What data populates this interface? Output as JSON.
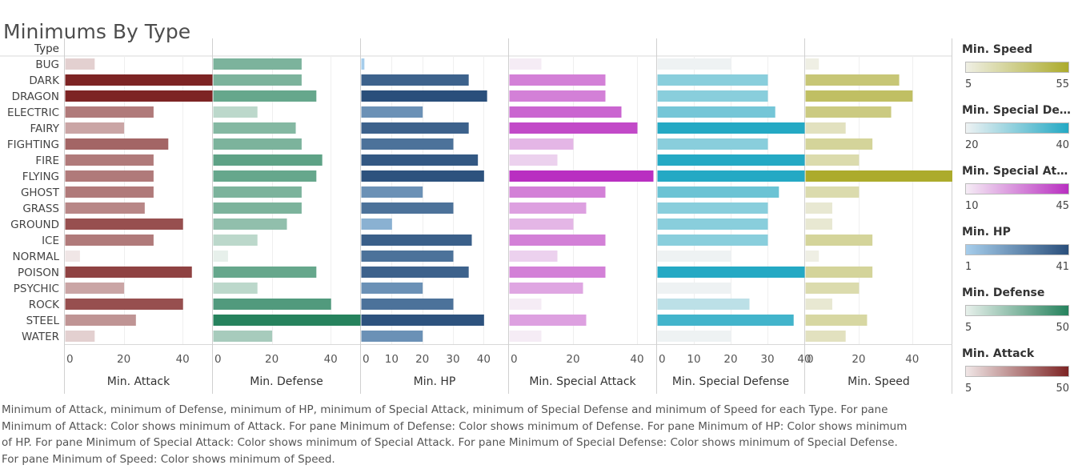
{
  "title": "Minimums By Type",
  "row_header": "Type",
  "chart_data": {
    "type": "bar",
    "orientation": "horizontal",
    "categories": [
      "BUG",
      "DARK",
      "DRAGON",
      "ELECTRIC",
      "FAIRY",
      "FIGHTING",
      "FIRE",
      "FLYING",
      "GHOST",
      "GRASS",
      "GROUND",
      "ICE",
      "NORMAL",
      "POISON",
      "PSYCHIC",
      "ROCK",
      "STEEL",
      "WATER"
    ],
    "panes": [
      {
        "xlabel": "Min. Attack",
        "ticks": [
          0,
          20,
          40
        ],
        "xlim": [
          0,
          50
        ],
        "color_low": "#f0e6e6",
        "color_high": "#7d2424",
        "legend": {
          "title": "Min. Attack",
          "min": "5",
          "max": "50"
        },
        "values": [
          10,
          50,
          50,
          30,
          20,
          35,
          30,
          30,
          30,
          27,
          40,
          30,
          5,
          43,
          20,
          40,
          24,
          10
        ]
      },
      {
        "xlabel": "Min. Defense",
        "ticks": [
          0,
          20,
          40
        ],
        "xlim": [
          0,
          50
        ],
        "color_low": "#e7f0eb",
        "color_high": "#26825d",
        "legend": {
          "title": "Min. Defense",
          "min": "5",
          "max": "50"
        },
        "values": [
          30,
          30,
          35,
          15,
          28,
          30,
          37,
          35,
          30,
          30,
          25,
          15,
          5,
          35,
          15,
          40,
          50,
          20
        ]
      },
      {
        "xlabel": "Min. HP",
        "ticks": [
          0,
          10,
          20,
          30,
          40
        ],
        "xlim": [
          0,
          48
        ],
        "color_low": "#a6cdeb",
        "color_high": "#2a4f7b",
        "legend": {
          "title": "Min. HP",
          "min": "1",
          "max": "41"
        },
        "values": [
          1,
          35,
          41,
          20,
          35,
          30,
          38,
          40,
          20,
          30,
          10,
          36,
          30,
          35,
          20,
          30,
          40,
          20
        ]
      },
      {
        "xlabel": "Min. Special Attack",
        "ticks": [
          0,
          20,
          40
        ],
        "xlim": [
          0,
          46
        ],
        "color_low": "#f5ecf5",
        "color_high": "#b92fc1",
        "legend": {
          "title": "Min. Special Attack",
          "min": "10",
          "max": "45"
        },
        "values": [
          10,
          30,
          30,
          35,
          40,
          20,
          15,
          45,
          30,
          24,
          20,
          30,
          15,
          30,
          23,
          10,
          24,
          10
        ]
      },
      {
        "xlabel": "Min. Special Defense",
        "ticks": [
          0,
          10,
          20,
          30,
          40
        ],
        "xlim": [
          0,
          40
        ],
        "color_low": "#eef2f3",
        "color_high": "#24a9c4",
        "legend": {
          "title": "Min. Special Defen..",
          "min": "20",
          "max": "40"
        },
        "values": [
          20,
          30,
          30,
          32,
          40,
          30,
          40,
          40,
          33,
          30,
          30,
          30,
          20,
          40,
          20,
          25,
          37,
          20
        ]
      },
      {
        "xlabel": "Min. Speed",
        "ticks": [
          0,
          20,
          40
        ],
        "xlim": [
          0,
          55
        ],
        "color_low": "#efefe4",
        "color_high": "#acab2c",
        "legend": {
          "title": "Min. Speed",
          "min": "5",
          "max": "55"
        },
        "values": [
          5,
          35,
          40,
          32,
          15,
          25,
          20,
          55,
          20,
          10,
          10,
          25,
          5,
          25,
          20,
          10,
          23,
          15
        ]
      }
    ]
  },
  "caption": [
    "Minimum of Attack, minimum of Defense, minimum of HP, minimum of Special Attack, minimum of Special Defense and minimum of Speed for each Type.  For pane",
    "Minimum of Attack:  Color shows minimum of Attack.  For pane Minimum of Defense:  Color shows minimum of Defense.  For pane Minimum of HP:  Color shows minimum",
    "of HP.  For pane Minimum of Special Attack:  Color shows minimum of Special Attack.  For pane Minimum of Special Defense:  Color shows minimum of Special Defense.",
    "For pane Minimum of Speed:  Color shows minimum of Speed."
  ]
}
